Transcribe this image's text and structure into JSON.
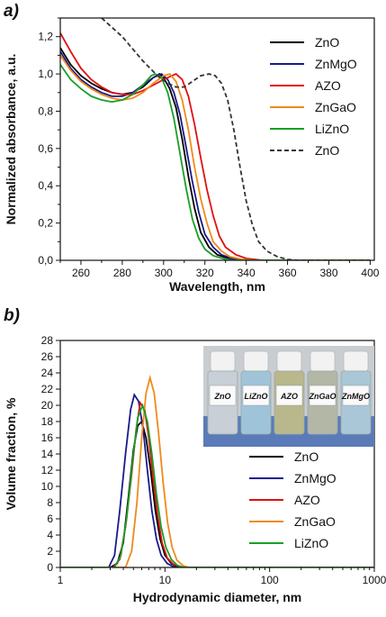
{
  "chart_data": [
    {
      "panel_label": "a)",
      "type": "line",
      "xlabel": "Wavelength, nm",
      "ylabel": "Normalized absorbance, a.u.",
      "xlim": [
        250,
        402
      ],
      "ylim": [
        0,
        1.3
      ],
      "xticks": [
        260,
        280,
        300,
        320,
        340,
        360,
        380,
        400
      ],
      "yticks": [
        0,
        0.2,
        0.4,
        0.6,
        0.8,
        1.0,
        1.2
      ],
      "ytick_labels": [
        "0,0",
        "0,2",
        "0,4",
        "0,6",
        "0,8",
        "1,0",
        "1,2"
      ],
      "legend_position": "top-right",
      "series": [
        {
          "name": "ZnO",
          "color": "#000000",
          "dash": "solid",
          "points": [
            [
              250,
              1.14
            ],
            [
              255,
              1.05
            ],
            [
              260,
              0.99
            ],
            [
              265,
              0.95
            ],
            [
              270,
              0.92
            ],
            [
              275,
              0.9
            ],
            [
              280,
              0.89
            ],
            [
              285,
              0.9
            ],
            [
              290,
              0.93
            ],
            [
              295,
              0.98
            ],
            [
              298,
              1.0
            ],
            [
              300,
              0.98
            ],
            [
              303,
              0.92
            ],
            [
              306,
              0.82
            ],
            [
              309,
              0.65
            ],
            [
              312,
              0.45
            ],
            [
              315,
              0.28
            ],
            [
              318,
              0.15
            ],
            [
              322,
              0.07
            ],
            [
              326,
              0.03
            ],
            [
              330,
              0.015
            ],
            [
              335,
              0.005
            ],
            [
              340,
              0.0
            ],
            [
              400,
              0.0
            ]
          ]
        },
        {
          "name": "ZnMgO",
          "color": "#1a1a8c",
          "dash": "solid",
          "points": [
            [
              250,
              1.12
            ],
            [
              255,
              1.03
            ],
            [
              260,
              0.97
            ],
            [
              265,
              0.93
            ],
            [
              270,
              0.9
            ],
            [
              275,
              0.88
            ],
            [
              280,
              0.88
            ],
            [
              285,
              0.9
            ],
            [
              290,
              0.94
            ],
            [
              295,
              0.98
            ],
            [
              299,
              1.0
            ],
            [
              302,
              0.97
            ],
            [
              305,
              0.9
            ],
            [
              308,
              0.78
            ],
            [
              311,
              0.6
            ],
            [
              314,
              0.42
            ],
            [
              317,
              0.26
            ],
            [
              320,
              0.14
            ],
            [
              324,
              0.07
            ],
            [
              328,
              0.03
            ],
            [
              333,
              0.01
            ],
            [
              340,
              0.0
            ],
            [
              400,
              0.0
            ]
          ]
        },
        {
          "name": "AZO",
          "color": "#e01010",
          "dash": "solid",
          "points": [
            [
              250,
              1.22
            ],
            [
              255,
              1.12
            ],
            [
              260,
              1.03
            ],
            [
              265,
              0.97
            ],
            [
              270,
              0.93
            ],
            [
              275,
              0.9
            ],
            [
              280,
              0.89
            ],
            [
              285,
              0.89
            ],
            [
              290,
              0.91
            ],
            [
              295,
              0.94
            ],
            [
              300,
              0.97
            ],
            [
              304,
              0.99
            ],
            [
              306,
              1.0
            ],
            [
              309,
              0.97
            ],
            [
              312,
              0.88
            ],
            [
              315,
              0.73
            ],
            [
              318,
              0.55
            ],
            [
              321,
              0.38
            ],
            [
              324,
              0.24
            ],
            [
              327,
              0.13
            ],
            [
              330,
              0.07
            ],
            [
              335,
              0.03
            ],
            [
              340,
              0.01
            ],
            [
              348,
              0.0
            ],
            [
              400,
              0.0
            ]
          ]
        },
        {
          "name": "ZnGaO",
          "color": "#f08a1a",
          "dash": "solid",
          "points": [
            [
              250,
              1.1
            ],
            [
              255,
              1.02
            ],
            [
              260,
              0.96
            ],
            [
              265,
              0.92
            ],
            [
              270,
              0.89
            ],
            [
              275,
              0.87
            ],
            [
              280,
              0.86
            ],
            [
              285,
              0.87
            ],
            [
              290,
              0.9
            ],
            [
              295,
              0.95
            ],
            [
              300,
              0.99
            ],
            [
              303,
              1.0
            ],
            [
              306,
              0.96
            ],
            [
              309,
              0.86
            ],
            [
              312,
              0.7
            ],
            [
              315,
              0.5
            ],
            [
              318,
              0.33
            ],
            [
              321,
              0.2
            ],
            [
              324,
              0.1
            ],
            [
              328,
              0.05
            ],
            [
              332,
              0.02
            ],
            [
              338,
              0.005
            ],
            [
              345,
              0.0
            ],
            [
              400,
              0.0
            ]
          ]
        },
        {
          "name": "LiZnO",
          "color": "#1a9e2a",
          "dash": "solid",
          "points": [
            [
              250,
              1.05
            ],
            [
              255,
              0.97
            ],
            [
              260,
              0.92
            ],
            [
              265,
              0.88
            ],
            [
              270,
              0.86
            ],
            [
              275,
              0.85
            ],
            [
              280,
              0.86
            ],
            [
              285,
              0.89
            ],
            [
              290,
              0.94
            ],
            [
              294,
              0.99
            ],
            [
              296,
              1.0
            ],
            [
              299,
              0.98
            ],
            [
              302,
              0.9
            ],
            [
              305,
              0.76
            ],
            [
              308,
              0.57
            ],
            [
              311,
              0.38
            ],
            [
              314,
              0.22
            ],
            [
              317,
              0.12
            ],
            [
              320,
              0.06
            ],
            [
              324,
              0.025
            ],
            [
              330,
              0.005
            ],
            [
              336,
              0.0
            ],
            [
              400,
              0.0
            ]
          ]
        },
        {
          "name": "ZnO",
          "color": "#333333",
          "dash": "dashed",
          "points": [
            [
              270,
              1.3
            ],
            [
              280,
              1.2
            ],
            [
              290,
              1.07
            ],
            [
              297,
              0.99
            ],
            [
              302,
              0.95
            ],
            [
              306,
              0.93
            ],
            [
              310,
              0.93
            ],
            [
              314,
              0.96
            ],
            [
              318,
              0.99
            ],
            [
              322,
              1.0
            ],
            [
              325,
              0.99
            ],
            [
              328,
              0.95
            ],
            [
              331,
              0.86
            ],
            [
              334,
              0.7
            ],
            [
              337,
              0.5
            ],
            [
              340,
              0.32
            ],
            [
              343,
              0.19
            ],
            [
              346,
              0.1
            ],
            [
              350,
              0.05
            ],
            [
              355,
              0.02
            ],
            [
              360,
              0.005
            ],
            [
              365,
              0.0
            ],
            [
              400,
              0.0
            ]
          ]
        }
      ]
    },
    {
      "panel_label": "b)",
      "type": "line",
      "xscale": "log",
      "xlabel": "Hydrodynamic diameter, nm",
      "ylabel": "Volume fraction, %",
      "xlim": [
        1,
        1000
      ],
      "ylim": [
        0,
        28
      ],
      "xticks": [
        1,
        10,
        100,
        1000
      ],
      "yticks": [
        0,
        2,
        4,
        6,
        8,
        10,
        12,
        14,
        16,
        18,
        20,
        22,
        24,
        26,
        28
      ],
      "legend_position": "bottom-right",
      "inset_photo_labels": [
        "ZnO",
        "LiZnO",
        "AZO",
        "ZnGaO",
        "ZnMgO"
      ],
      "series": [
        {
          "name": "ZnO",
          "color": "#000000",
          "points": [
            [
              1,
              0
            ],
            [
              3.0,
              0
            ],
            [
              3.5,
              0.5
            ],
            [
              4.0,
              3
            ],
            [
              4.5,
              9
            ],
            [
              5.0,
              14.5
            ],
            [
              5.5,
              17.5
            ],
            [
              6.0,
              18
            ],
            [
              6.6,
              16
            ],
            [
              7.3,
              12
            ],
            [
              8.1,
              7
            ],
            [
              9.0,
              3.5
            ],
            [
              10,
              1.5
            ],
            [
              11.5,
              0.5
            ],
            [
              13,
              0.1
            ],
            [
              15,
              0
            ],
            [
              1000,
              0
            ]
          ]
        },
        {
          "name": "ZnMgO",
          "color": "#1a1a8c",
          "points": [
            [
              1,
              0
            ],
            [
              2.9,
              0
            ],
            [
              3.3,
              1.5
            ],
            [
              3.7,
              7
            ],
            [
              4.2,
              14
            ],
            [
              4.7,
              19.5
            ],
            [
              5.1,
              21.3
            ],
            [
              5.6,
              20.5
            ],
            [
              6.2,
              17
            ],
            [
              6.8,
              12
            ],
            [
              7.5,
              7
            ],
            [
              8.3,
              3.5
            ],
            [
              9.2,
              1.5
            ],
            [
              10.5,
              0.5
            ],
            [
              12,
              0.1
            ],
            [
              14,
              0
            ],
            [
              1000,
              0
            ]
          ]
        },
        {
          "name": "AZO",
          "color": "#e01010",
          "points": [
            [
              1,
              0
            ],
            [
              3.2,
              0
            ],
            [
              3.7,
              1
            ],
            [
              4.2,
              5
            ],
            [
              4.8,
              11.5
            ],
            [
              5.3,
              17
            ],
            [
              5.8,
              20.3
            ],
            [
              6.4,
              19.5
            ],
            [
              7.0,
              16
            ],
            [
              7.7,
              11
            ],
            [
              8.5,
              6.5
            ],
            [
              9.4,
              3
            ],
            [
              10.5,
              1.2
            ],
            [
              12,
              0.4
            ],
            [
              14,
              0.1
            ],
            [
              16,
              0
            ],
            [
              1000,
              0
            ]
          ]
        },
        {
          "name": "ZnGaO",
          "color": "#f08a1a",
          "points": [
            [
              1,
              0
            ],
            [
              4.2,
              0
            ],
            [
              4.8,
              2
            ],
            [
              5.4,
              8
            ],
            [
              6.0,
              16
            ],
            [
              6.6,
              21.5
            ],
            [
              7.2,
              23.4
            ],
            [
              7.9,
              21.5
            ],
            [
              8.7,
              16.5
            ],
            [
              9.6,
              10.5
            ],
            [
              10.6,
              5.5
            ],
            [
              11.7,
              2.5
            ],
            [
              13,
              0.9
            ],
            [
              15,
              0.2
            ],
            [
              17,
              0
            ],
            [
              1000,
              0
            ]
          ]
        },
        {
          "name": "LiZnO",
          "color": "#1a9e2a",
          "points": [
            [
              1,
              0
            ],
            [
              3.3,
              0
            ],
            [
              3.8,
              1.5
            ],
            [
              4.3,
              6
            ],
            [
              4.9,
              13
            ],
            [
              5.5,
              18.5
            ],
            [
              6.1,
              20
            ],
            [
              6.8,
              18
            ],
            [
              7.5,
              14
            ],
            [
              8.3,
              9
            ],
            [
              9.2,
              5
            ],
            [
              10.2,
              2.5
            ],
            [
              11.5,
              1
            ],
            [
              13,
              0.3
            ],
            [
              15,
              0
            ],
            [
              1000,
              0
            ]
          ]
        }
      ]
    }
  ]
}
